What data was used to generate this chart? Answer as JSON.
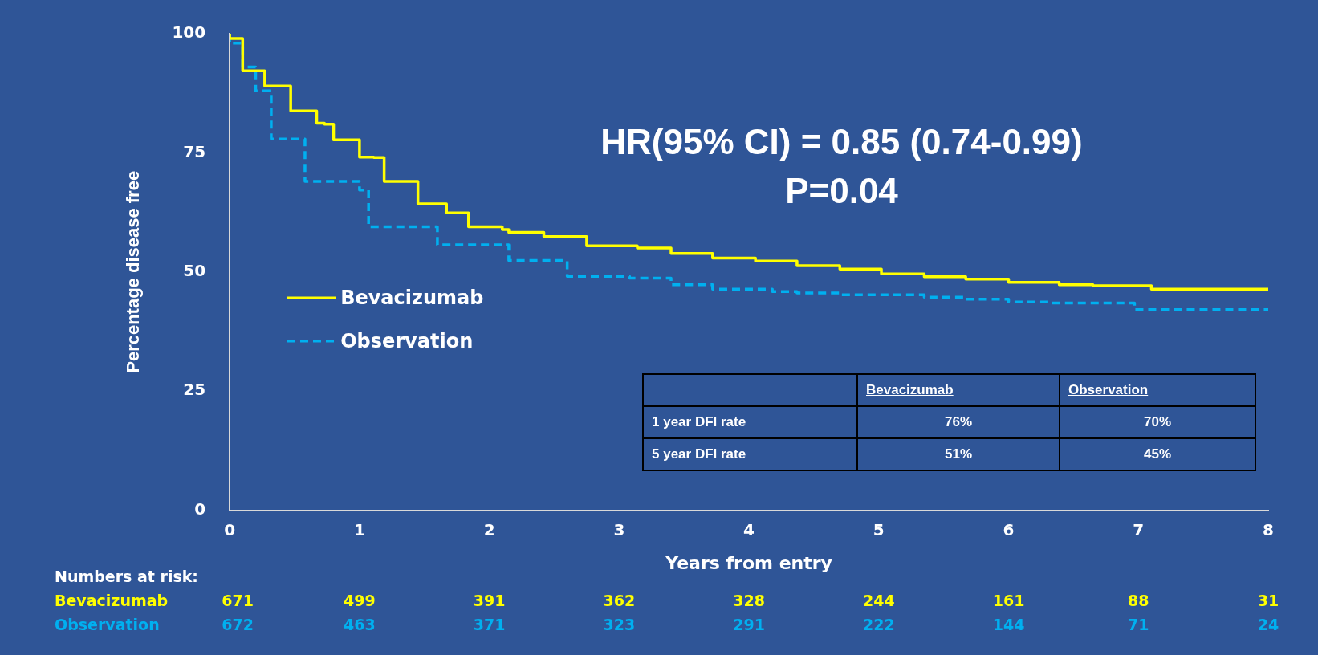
{
  "chart_data": {
    "type": "step",
    "xlabel": "Years from entry",
    "ylabel": "Percentage disease free",
    "xlim": [
      0,
      8
    ],
    "xticks": [
      0,
      1,
      2,
      3,
      4,
      5,
      6,
      7,
      8
    ],
    "ylim": [
      0,
      100
    ],
    "yticks": [
      0,
      25,
      50,
      75,
      100
    ],
    "grid": false,
    "legend": "left",
    "marker": "none",
    "series": [
      {
        "name": "Bevacizumab",
        "color": "#ffff00",
        "line_style": "solid",
        "x": [
          0,
          0.1,
          0.27,
          0.47,
          0.67,
          0.73,
          0.8,
          1.0,
          1.11,
          1.19,
          1.45,
          1.67,
          1.84,
          2.1,
          2.15,
          2.42,
          2.75,
          3.14,
          3.4,
          3.72,
          4.05,
          4.37,
          4.7,
          5.02,
          5.35,
          5.67,
          6.0,
          6.39,
          6.65,
          7.1,
          7.3,
          8.0
        ],
        "values": [
          100,
          99,
          92.2,
          89,
          83.8,
          81.2,
          81,
          77.7,
          74.1,
          74,
          69,
          64.3,
          62.4,
          59.5,
          58.9,
          58.3,
          57.4,
          55.5,
          55,
          53.9,
          52.9,
          52.3,
          51.3,
          50.6,
          49.6,
          49,
          48.5,
          47.8,
          47.3,
          47.1,
          46.4,
          46.4
        ]
      },
      {
        "name": "Observation",
        "color": "#00b0f0",
        "line_style": "dashed",
        "x": [
          0,
          0.1,
          0.2,
          0.32,
          0.58,
          1.0,
          1.07,
          1.6,
          2.15,
          2.6,
          3.08,
          3.4,
          3.72,
          4.18,
          4.37,
          4.7,
          5.35,
          5.67,
          6.0,
          6.32,
          6.97,
          7.4,
          8.0
        ],
        "values": [
          100,
          98,
          93,
          88,
          77.9,
          69,
          67.2,
          59.5,
          55.7,
          52.4,
          49.1,
          48.7,
          47.3,
          46.4,
          45.9,
          45.6,
          45.2,
          44.7,
          44.3,
          43.7,
          43.5,
          42.1,
          42.1
        ]
      }
    ],
    "annotations": [
      "HR(95% CI) = 0.85 (0.74-0.99)",
      "P=0.04",
      "Bevacizumab",
      "Observation",
      "1 year DFI rate",
      "76%",
      "70%",
      "5 year DFI rate",
      "51%",
      "45%",
      "Numbers at risk:",
      "671",
      "499",
      "391",
      "362",
      "328",
      "244",
      "161",
      "88",
      "31",
      "672",
      "463",
      "371",
      "323",
      "291",
      "222",
      "144",
      "71",
      "24"
    ]
  }
}
